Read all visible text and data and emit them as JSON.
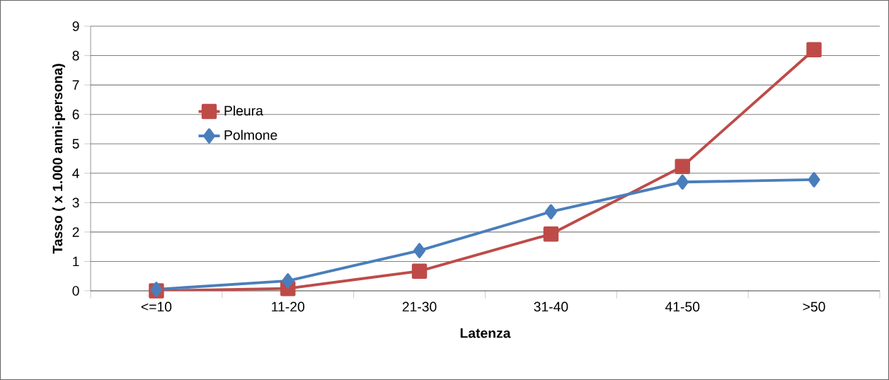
{
  "chart_data": {
    "type": "line",
    "xlabel": "Latenza",
    "ylabel": "Tasso ( x 1.000 anni-persona)",
    "categories": [
      "<=10",
      "11-20",
      "21-30",
      "31-40",
      "41-50",
      ">50"
    ],
    "series": [
      {
        "name": "Pleura",
        "color": "#be4b48",
        "marker": "square",
        "values": [
          0,
          0.08,
          0.67,
          1.93,
          4.23,
          8.2
        ]
      },
      {
        "name": "Polmone",
        "color": "#4a7ebb",
        "marker": "diamond",
        "values": [
          0.05,
          0.34,
          1.37,
          2.69,
          3.7,
          3.78
        ]
      }
    ],
    "ylim": [
      0,
      9
    ],
    "yticks": [
      0,
      1,
      2,
      3,
      4,
      5,
      6,
      7,
      8,
      9
    ],
    "grid": "y",
    "legend": "top left",
    "line_style": "solid"
  }
}
